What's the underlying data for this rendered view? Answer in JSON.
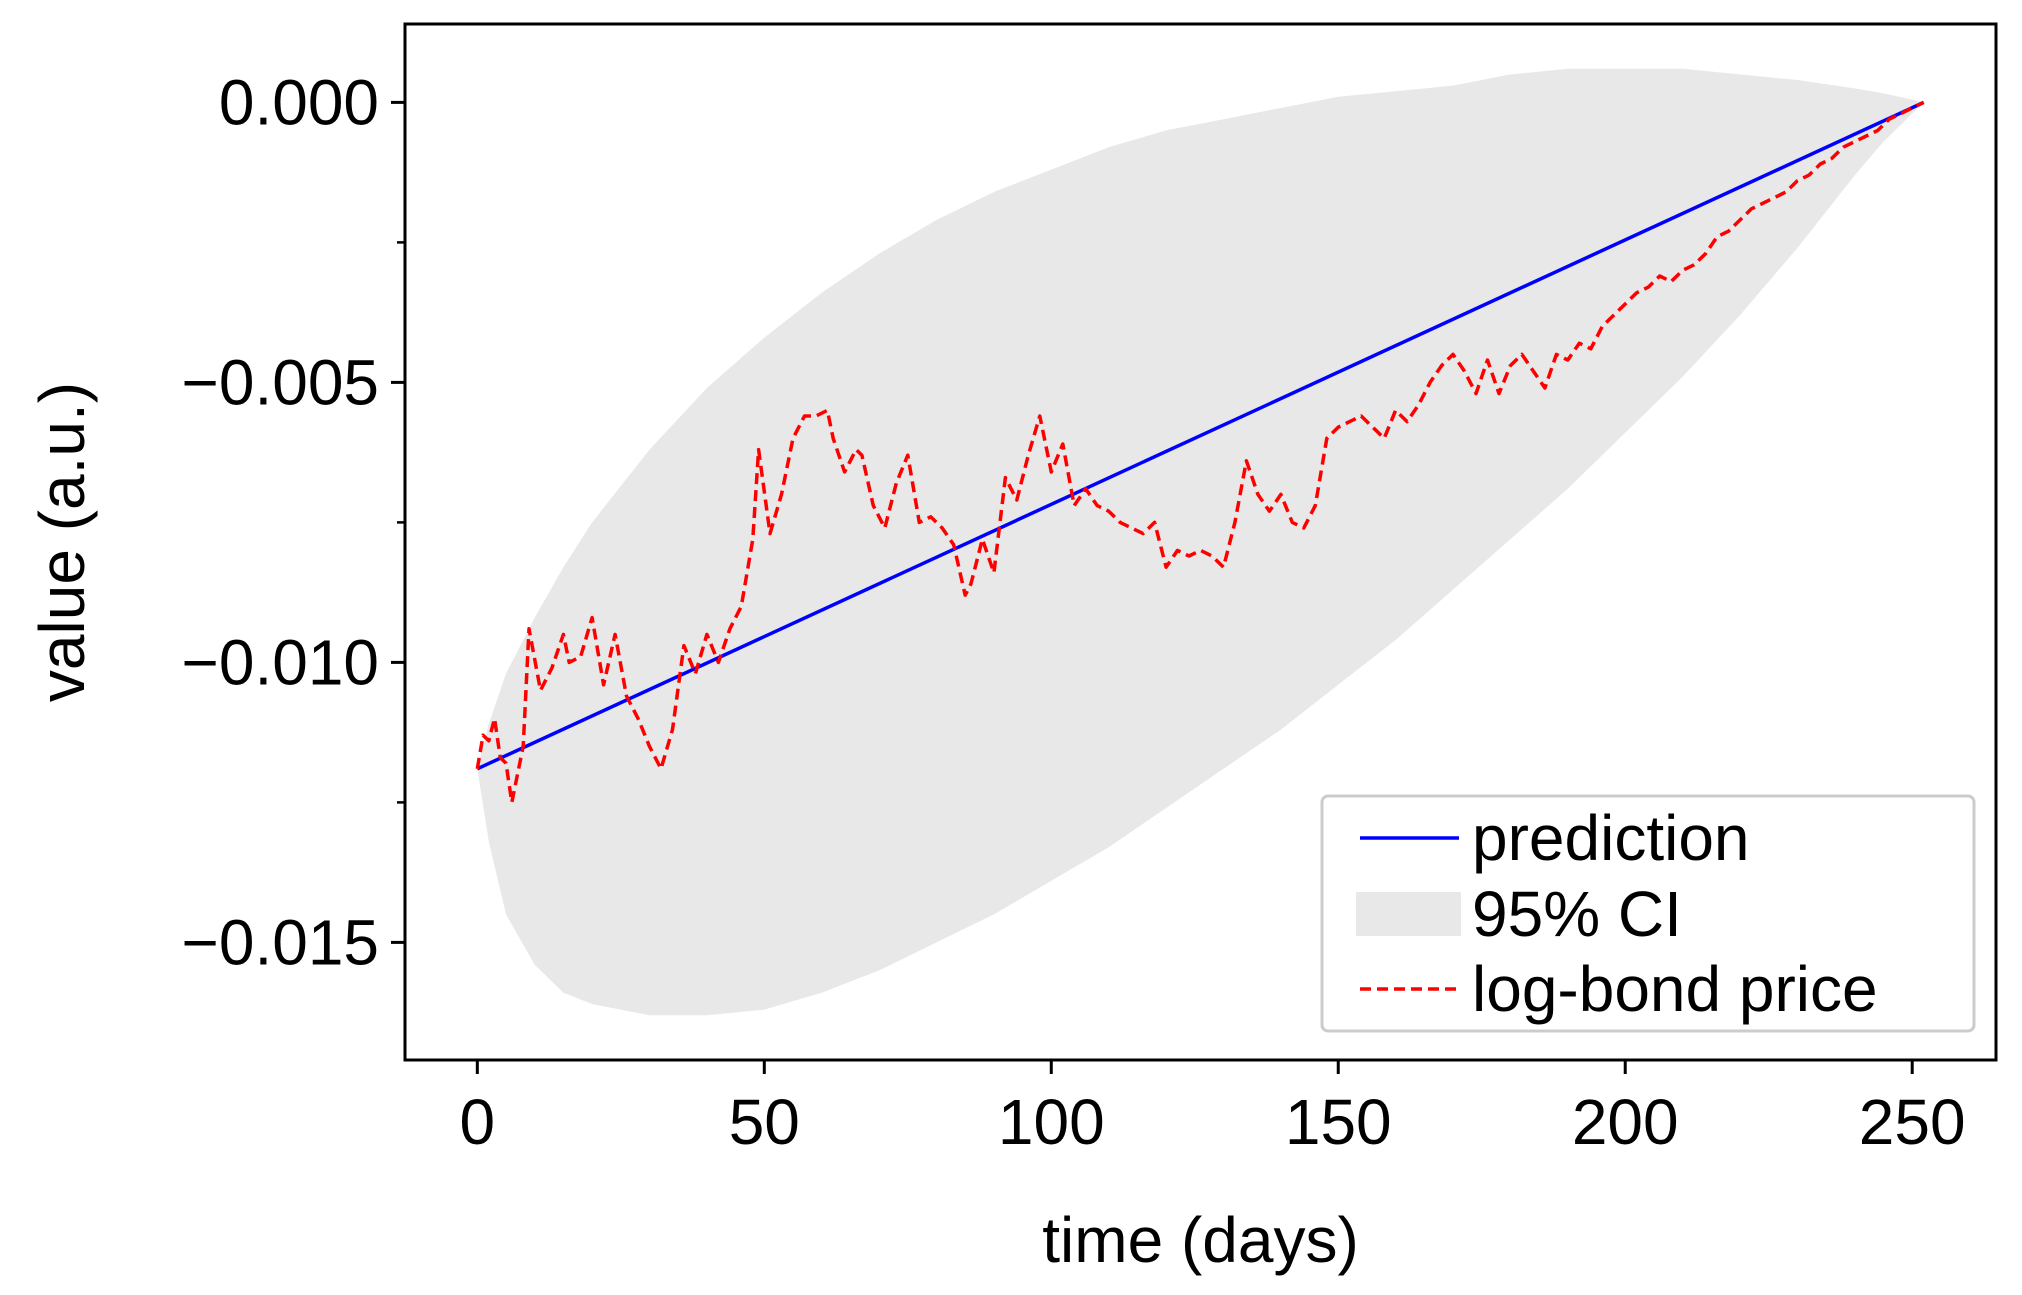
{
  "chart_data": {
    "type": "line",
    "title": "",
    "xlabel": "time (days)",
    "ylabel": "value (a.u.)",
    "xlim": [
      -12.6,
      264.6
    ],
    "ylim": [
      -0.0171,
      0.0014
    ],
    "xticks": [
      0,
      50,
      100,
      150,
      200,
      250
    ],
    "xtick_labels": [
      "0",
      "50",
      "100",
      "150",
      "200",
      "250"
    ],
    "yticks": [
      0.0,
      -0.005,
      -0.01,
      -0.015
    ],
    "ytick_labels": [
      "0.000",
      "−0.005",
      "−0.010",
      "−0.015"
    ],
    "yminor_ticks": [
      -0.0025,
      -0.0075,
      -0.0125
    ],
    "grid": false,
    "legend": {
      "location": "lower-right",
      "entries": [
        {
          "label": "prediction",
          "style": "solid-line"
        },
        {
          "label": "95% CI",
          "style": "filled-band"
        },
        {
          "label": "log-bond price",
          "style": "dashed-line"
        }
      ]
    },
    "series": [
      {
        "name": "prediction",
        "style": "solid",
        "color": "#0000ff",
        "x": [
          0,
          252
        ],
        "y": [
          -0.0119,
          0.0
        ]
      },
      {
        "name": "95% CI",
        "style": "band",
        "color": "#e8e8e8",
        "x": [
          0,
          2,
          5,
          10,
          15,
          20,
          30,
          40,
          50,
          60,
          70,
          80,
          90,
          100,
          110,
          120,
          130,
          140,
          150,
          160,
          170,
          180,
          190,
          200,
          210,
          220,
          230,
          240,
          245,
          250,
          252
        ],
        "upper": [
          -0.0119,
          -0.0111,
          -0.0102,
          -0.0092,
          -0.0083,
          -0.0075,
          -0.0062,
          -0.0051,
          -0.0042,
          -0.0034,
          -0.0027,
          -0.0021,
          -0.0016,
          -0.0012,
          -0.0008,
          -0.0005,
          -0.0003,
          -0.0001,
          0.0001,
          0.0002,
          0.0003,
          0.0005,
          0.0006,
          0.0006,
          0.0006,
          0.0005,
          0.0004,
          0.00025,
          0.00016,
          5e-05,
          0.0
        ],
        "lower": [
          -0.0119,
          -0.0132,
          -0.0145,
          -0.0154,
          -0.0159,
          -0.0161,
          -0.0163,
          -0.0163,
          -0.0162,
          -0.0159,
          -0.0155,
          -0.015,
          -0.0145,
          -0.0139,
          -0.0133,
          -0.0126,
          -0.0119,
          -0.0112,
          -0.0104,
          -0.0096,
          -0.0087,
          -0.0078,
          -0.0069,
          -0.0059,
          -0.0049,
          -0.0038,
          -0.0026,
          -0.0013,
          -0.0007,
          -0.0002,
          0.0
        ]
      },
      {
        "name": "log-bond price",
        "style": "dashed",
        "color": "#ff0000",
        "x": [
          0,
          1,
          2,
          3,
          4,
          5,
          6,
          8,
          9,
          11,
          13,
          15,
          16,
          18,
          20,
          22,
          24,
          26,
          28,
          30,
          32,
          34,
          36,
          38,
          40,
          42,
          44,
          46,
          48,
          49,
          51,
          53,
          55,
          57,
          59,
          61,
          62,
          64,
          66,
          67,
          69,
          71,
          73,
          75,
          77,
          79,
          81,
          83,
          85,
          86,
          88,
          90,
          92,
          94,
          96,
          98,
          100,
          102,
          104,
          106,
          108,
          110,
          112,
          114,
          116,
          118,
          120,
          122,
          124,
          126,
          128,
          130,
          132,
          134,
          136,
          138,
          140,
          142,
          144,
          146,
          148,
          150,
          152,
          154,
          156,
          158,
          160,
          162,
          164,
          166,
          168,
          170,
          172,
          174,
          176,
          178,
          180,
          182,
          184,
          186,
          188,
          190,
          192,
          194,
          196,
          198,
          200,
          202,
          204,
          206,
          208,
          210,
          212,
          214,
          216,
          218,
          220,
          222,
          224,
          226,
          228,
          230,
          232,
          234,
          236,
          238,
          240,
          242,
          244,
          246,
          248,
          250,
          252
        ],
        "y": [
          -0.0119,
          -0.0113,
          -0.0114,
          -0.011,
          -0.0117,
          -0.0118,
          -0.0125,
          -0.0115,
          -0.0094,
          -0.0105,
          -0.0101,
          -0.0095,
          -0.01,
          -0.0099,
          -0.0092,
          -0.0104,
          -0.0095,
          -0.0106,
          -0.011,
          -0.0115,
          -0.0119,
          -0.0112,
          -0.0097,
          -0.0102,
          -0.0095,
          -0.01,
          -0.0094,
          -0.009,
          -0.0078,
          -0.0062,
          -0.0077,
          -0.007,
          -0.006,
          -0.0056,
          -0.0056,
          -0.0055,
          -0.006,
          -0.0066,
          -0.0062,
          -0.0063,
          -0.0072,
          -0.0076,
          -0.0068,
          -0.0063,
          -0.0075,
          -0.0074,
          -0.0076,
          -0.0079,
          -0.0088,
          -0.0086,
          -0.0078,
          -0.0084,
          -0.0067,
          -0.0071,
          -0.0063,
          -0.0056,
          -0.0066,
          -0.0061,
          -0.0072,
          -0.0069,
          -0.0072,
          -0.0073,
          -0.0075,
          -0.0076,
          -0.0077,
          -0.0075,
          -0.0083,
          -0.008,
          -0.0081,
          -0.008,
          -0.0081,
          -0.0083,
          -0.0075,
          -0.0064,
          -0.007,
          -0.0073,
          -0.007,
          -0.0075,
          -0.0076,
          -0.0072,
          -0.006,
          -0.0058,
          -0.0057,
          -0.0056,
          -0.0058,
          -0.006,
          -0.0055,
          -0.0057,
          -0.0054,
          -0.005,
          -0.0047,
          -0.0045,
          -0.0048,
          -0.0052,
          -0.0046,
          -0.0052,
          -0.0047,
          -0.0045,
          -0.0048,
          -0.0051,
          -0.0045,
          -0.0046,
          -0.0043,
          -0.0044,
          -0.004,
          -0.0038,
          -0.0036,
          -0.0034,
          -0.0033,
          -0.0031,
          -0.0032,
          -0.003,
          -0.0029,
          -0.0027,
          -0.0024,
          -0.0023,
          -0.0021,
          -0.0019,
          -0.0018,
          -0.0017,
          -0.0016,
          -0.0014,
          -0.0013,
          -0.0011,
          -0.001,
          -0.0008,
          -0.0007,
          -0.0006,
          -0.0005,
          -0.0003,
          -0.0002,
          -0.0001,
          0.0
        ]
      }
    ]
  }
}
